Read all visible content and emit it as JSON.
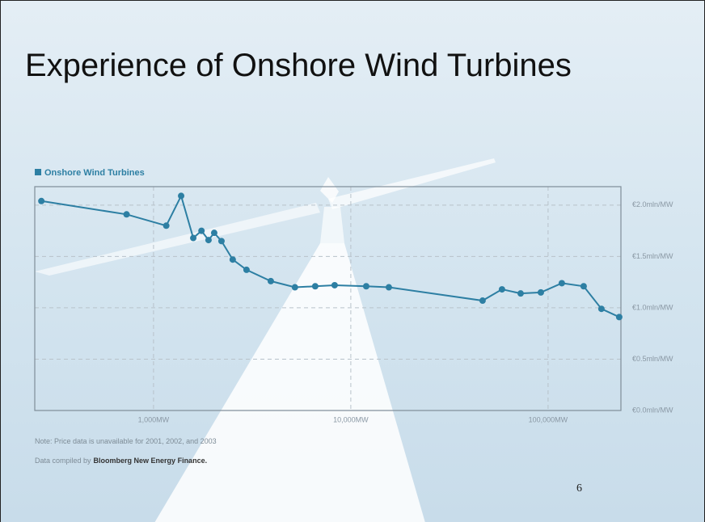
{
  "slide": {
    "title": "Experience of Onshore Wind Turbines",
    "note": "Note: Price data is unavailable for 2001, 2002, and 2003",
    "credit_prefix": "Data compiled by",
    "credit_source": "Bloomberg New Energy Finance.",
    "page_number": 6
  },
  "chart_data": {
    "type": "line",
    "xscale": "log",
    "grid": true,
    "legend": "top-left",
    "series": [
      {
        "name": "Onshore Wind Turbines",
        "color": "#2d7fa3",
        "x": [
          270,
          730,
          1160,
          1380,
          1590,
          1750,
          1900,
          2030,
          2210,
          2520,
          2960,
          3930,
          5210,
          6600,
          8280,
          11970,
          15590,
          46560,
          58400,
          72600,
          91900,
          117400,
          151500,
          186400,
          229400
        ],
        "values": [
          2.04,
          1.91,
          1.8,
          2.09,
          1.68,
          1.75,
          1.66,
          1.73,
          1.65,
          1.47,
          1.37,
          1.26,
          1.2,
          1.21,
          1.22,
          1.21,
          1.2,
          1.07,
          1.18,
          1.14,
          1.15,
          1.24,
          1.21,
          0.99,
          0.91
        ]
      }
    ],
    "xlim": [
      250,
      234000
    ],
    "xticks": [
      {
        "value": 1000,
        "label": "1,000MW"
      },
      {
        "value": 10000,
        "label": "10,000MW"
      },
      {
        "value": 100000,
        "label": "100,000MW"
      }
    ],
    "ylim": [
      0,
      2.18
    ],
    "yticks": [
      {
        "value": 0,
        "label": "€0.0mln/MW"
      },
      {
        "value": 0.5,
        "label": "€0.5mln/MW"
      },
      {
        "value": 1,
        "label": "€1.0mln/MW"
      },
      {
        "value": 1.5,
        "label": "€1.5mln/MW"
      },
      {
        "value": 2,
        "label": "€2.0mln/MW"
      }
    ]
  }
}
